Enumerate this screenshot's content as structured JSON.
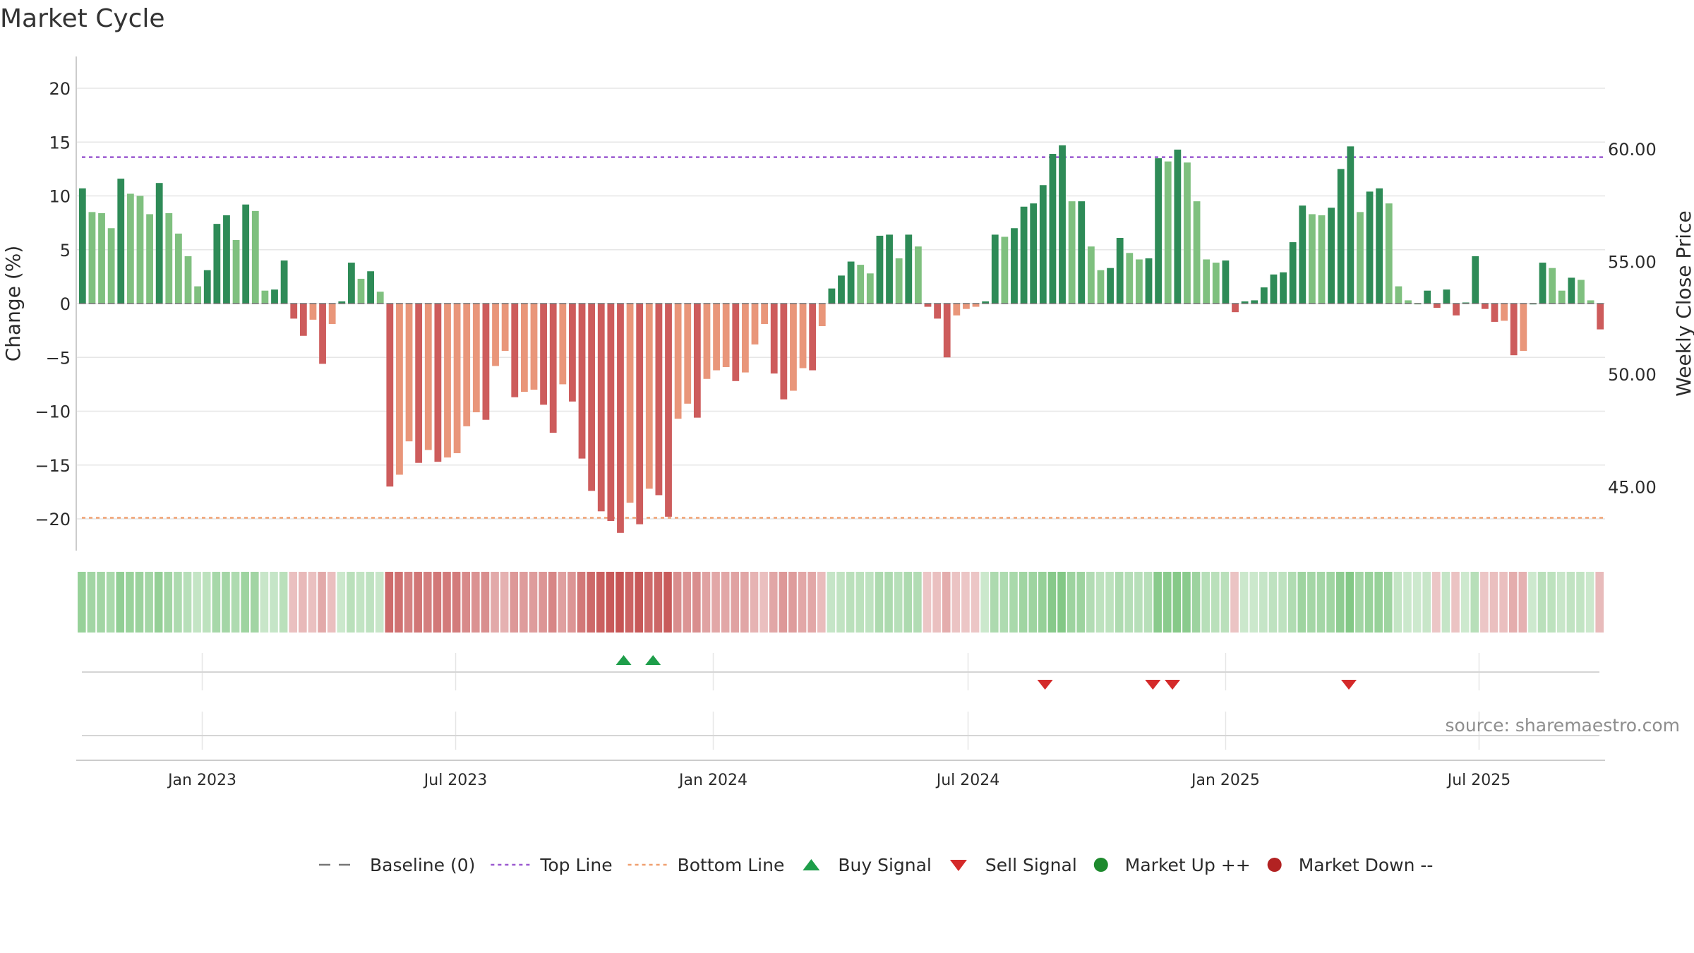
{
  "title": "Market Cycle",
  "source": "source: sharemaestro.com",
  "colors": {
    "up_strong": "#2e8b57",
    "up_light": "#7fc07f",
    "down_strong": "#cd5c5c",
    "down_light": "#e9967a",
    "top_line": "#9b59d0",
    "bottom_line": "#f0a070",
    "baseline": "#777777",
    "buy": "#1e9e4a",
    "sell": "#d42a2a",
    "market_up": "#1e8a2e",
    "market_down": "#b22222",
    "grid": "#e6e6e6"
  },
  "chart_data": {
    "type": "bar",
    "title": "Market Cycle",
    "ylabel": "Change (%)",
    "y2label": "Weekly Close Price",
    "ylim": [
      -23,
      23
    ],
    "yticks": [
      20,
      15,
      10,
      5,
      0,
      -5,
      -10,
      -15,
      -20
    ],
    "ytick_labels": [
      "20",
      "15",
      "10",
      "5",
      "0",
      "−5",
      "−10",
      "−15",
      "−20"
    ],
    "y2ticks": [
      60,
      55,
      50,
      45
    ],
    "y2tick_labels": [
      "60.00",
      "55.00",
      "50.00",
      "45.00"
    ],
    "x_start": "2022-10-03",
    "x_end": "2025-09-29",
    "xticks": [
      "2023-01-01",
      "2023-07-01",
      "2024-01-01",
      "2024-07-01",
      "2025-01-01",
      "2025-07-01"
    ],
    "xtick_labels": [
      "Jan 2023",
      "Jul 2023",
      "Jan 2024",
      "Jul 2024",
      "Jan 2025",
      "Jul 2025"
    ],
    "top_line": 13.6,
    "bottom_line": -19.9,
    "grid": true,
    "legend_position": "bottom",
    "series": [
      {
        "name": "Change (%)",
        "values": [
          10.7,
          8.5,
          8.4,
          7.0,
          11.6,
          10.2,
          10.0,
          8.3,
          11.2,
          8.4,
          6.5,
          4.4,
          1.6,
          3.1,
          7.4,
          8.2,
          5.9,
          9.2,
          8.6,
          1.2,
          1.3,
          4.0,
          -1.4,
          -3.0,
          -1.5,
          -5.6,
          -1.9,
          0.2,
          3.8,
          2.3,
          3.0,
          1.1,
          -17.0,
          -15.9,
          -12.8,
          -14.8,
          -13.6,
          -14.7,
          -14.3,
          -13.9,
          -11.4,
          -10.1,
          -10.8,
          -5.8,
          -4.4,
          -8.7,
          -8.2,
          -8.0,
          -9.4,
          -12.0,
          -7.5,
          -9.1,
          -14.4,
          -17.4,
          -19.3,
          -20.2,
          -21.3,
          -18.5,
          -20.5,
          -17.2,
          -17.8,
          -19.8,
          -10.7,
          -9.3,
          -10.6,
          -7.0,
          -6.2,
          -5.9,
          -7.2,
          -6.4,
          -3.8,
          -1.9,
          -6.5,
          -8.9,
          -8.1,
          -6.0,
          -6.2,
          -2.1,
          1.4,
          2.6,
          3.9,
          3.6,
          2.8,
          6.3,
          6.4,
          4.2,
          6.4,
          5.3,
          -0.3,
          -1.4,
          -5.0,
          -1.1,
          -0.5,
          -0.3,
          0.2,
          6.4,
          6.2,
          7.0,
          9.0,
          9.3,
          11.0,
          13.9,
          14.7,
          9.5,
          9.5,
          5.3,
          3.1,
          3.3,
          6.1,
          4.7,
          4.1,
          4.2,
          13.5,
          13.2,
          14.3,
          13.1,
          9.5,
          4.1,
          3.8,
          4.0,
          -0.8,
          0.2,
          0.3,
          1.5,
          2.7,
          2.9,
          5.7,
          9.1,
          8.3,
          8.2,
          8.9,
          12.5,
          14.6,
          8.5,
          10.4,
          10.7,
          9.3,
          1.6,
          0.3,
          0.0,
          1.2,
          -0.4,
          1.3,
          -1.1,
          0.1,
          4.4,
          -0.5,
          -1.7,
          -1.6,
          -4.8,
          -4.4,
          0.0,
          3.8,
          3.3,
          1.2,
          2.4,
          2.2,
          0.3,
          -2.4
        ]
      }
    ],
    "buy_signals": [
      "2023-10-29",
      "2023-11-19"
    ],
    "sell_signals": [
      "2024-08-25",
      "2024-11-10",
      "2024-11-24",
      "2025-03-30"
    ],
    "legend": [
      "Baseline (0)",
      "Top Line",
      "Bottom Line",
      "Buy Signal",
      "Sell Signal",
      "Market Up ++",
      "Market Down --"
    ]
  }
}
